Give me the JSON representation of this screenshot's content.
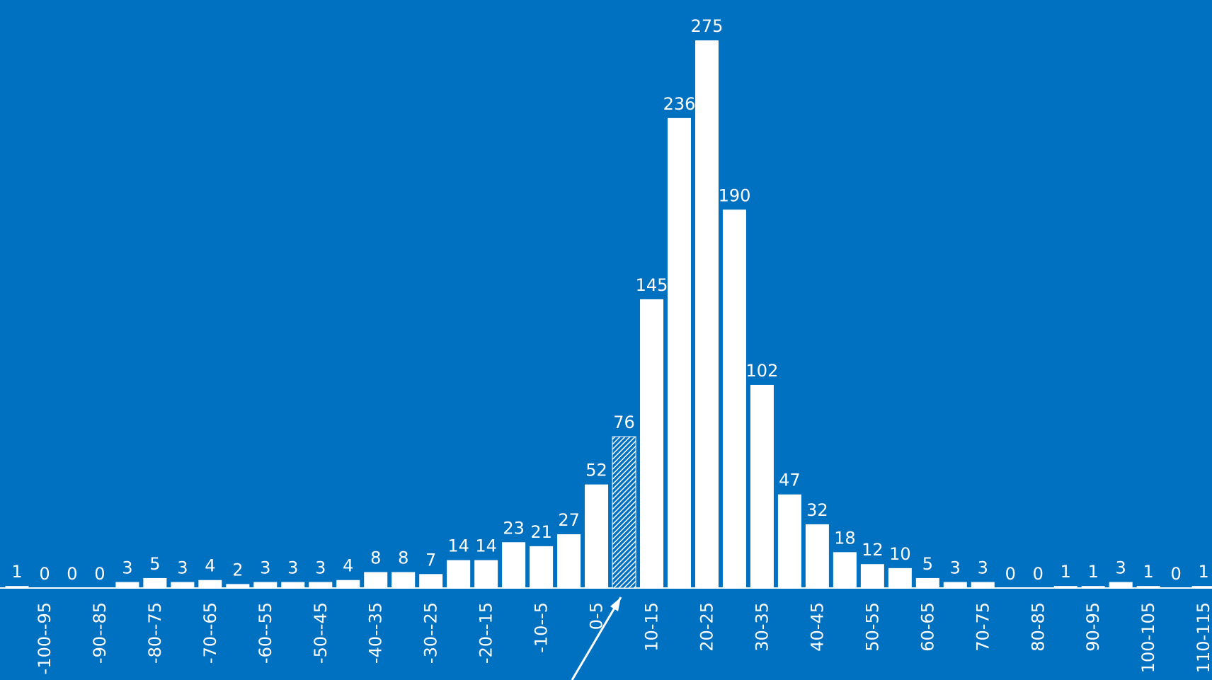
{
  "chart_data": {
    "type": "bar",
    "categories": [
      null,
      "-100--95",
      null,
      "-90--85",
      null,
      "-80--75",
      null,
      "-70--65",
      null,
      "-60--55",
      null,
      "-50--45",
      null,
      "-40--35",
      null,
      "-30--25",
      null,
      "-20--15",
      null,
      "-10--5",
      null,
      "0-5",
      null,
      "10-15",
      null,
      "20-25",
      null,
      "30-35",
      null,
      "40-45",
      null,
      "50-55",
      null,
      "60-65",
      null,
      "70-75",
      null,
      "80-85",
      null,
      "90-95",
      null,
      "100-105",
      null,
      "110-115"
    ],
    "values": [
      1,
      0,
      0,
      0,
      3,
      5,
      3,
      4,
      2,
      3,
      3,
      3,
      4,
      8,
      8,
      7,
      14,
      14,
      23,
      21,
      27,
      52,
      76,
      145,
      236,
      275,
      190,
      102,
      47,
      32,
      18,
      12,
      10,
      5,
      3,
      3,
      0,
      0,
      1,
      1,
      3,
      1,
      0,
      1
    ],
    "color": "#ffffff",
    "background": "#0070c0",
    "hatched_index": 22,
    "ylim": [
      0,
      280
    ]
  }
}
